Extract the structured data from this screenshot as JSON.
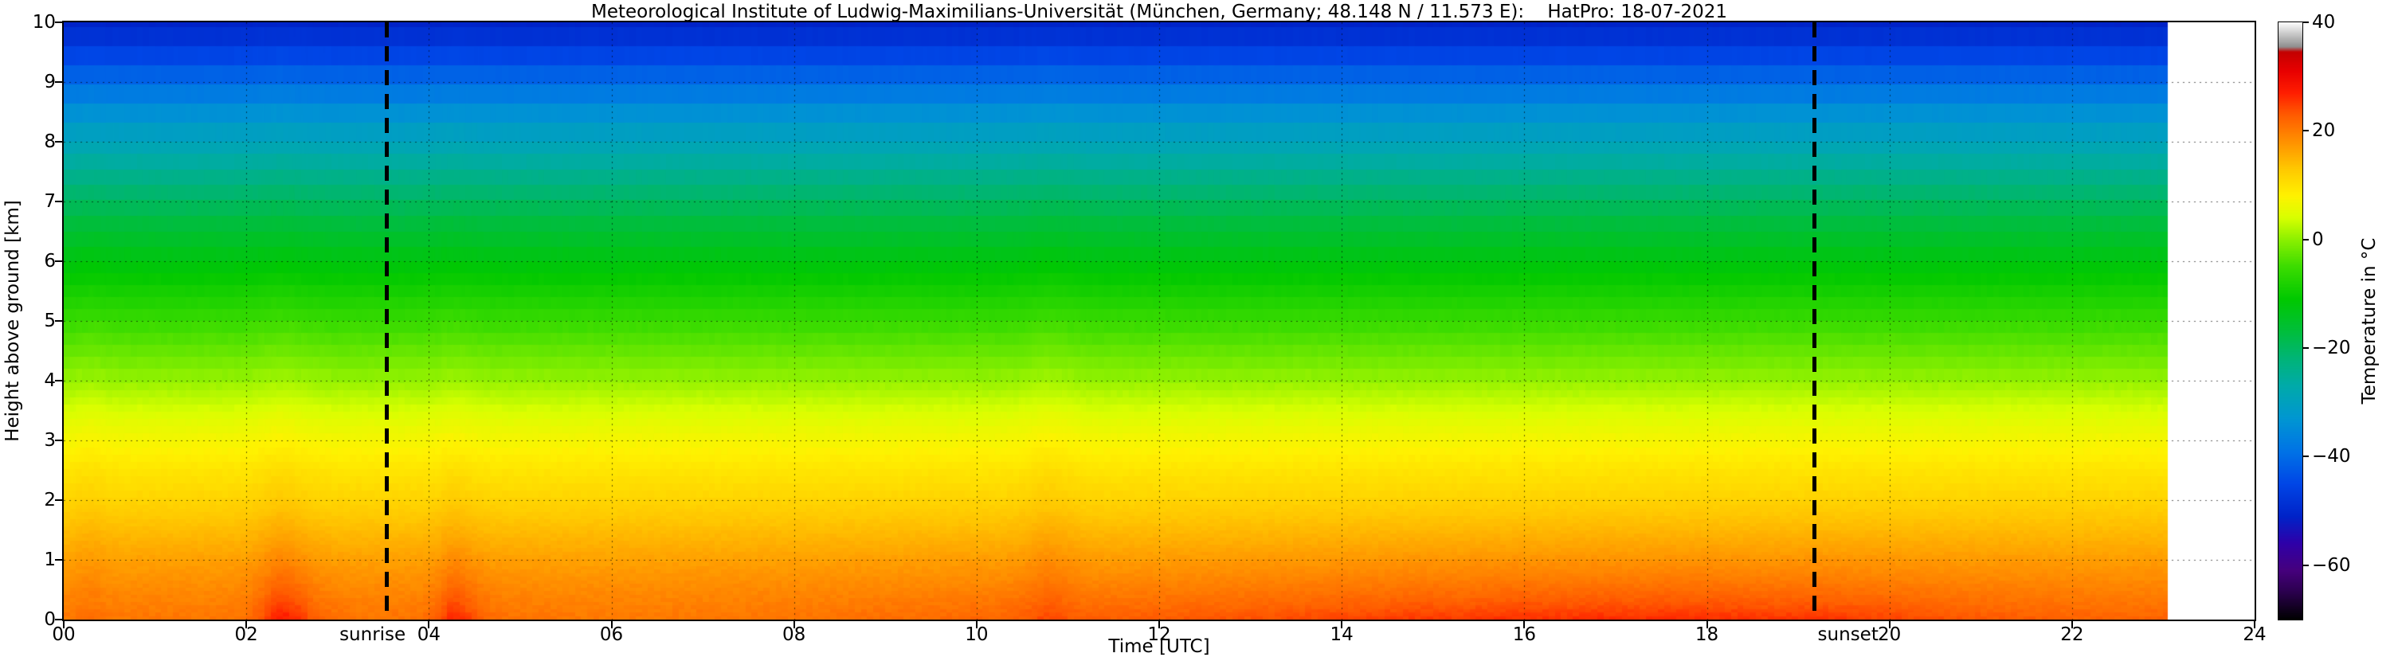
{
  "title": "Meteorological Institute of Ludwig-Maximilians-Universität (München, Germany; 48.148 N / 11.573 E):    HatPro: 18-07-2021",
  "chart_data": {
    "type": "heatmap",
    "title": "Meteorological Institute of Ludwig-Maximilians-Universität (München, Germany; 48.148 N / 11.573 E):    HatPro: 18-07-2021",
    "xlabel": "Time [UTC]",
    "ylabel": "Height above ground [km]",
    "x_range": [
      0,
      24
    ],
    "y_range": [
      0,
      10
    ],
    "grid": true,
    "data_time_extent_utc": [
      0,
      23.05
    ],
    "x_ticks": [
      {
        "v": 0,
        "label": "00"
      },
      {
        "v": 2,
        "label": "02"
      },
      {
        "v": 4,
        "label": "04"
      },
      {
        "v": 6,
        "label": "06"
      },
      {
        "v": 8,
        "label": "08"
      },
      {
        "v": 10,
        "label": "10"
      },
      {
        "v": 12,
        "label": "12"
      },
      {
        "v": 14,
        "label": "14"
      },
      {
        "v": 16,
        "label": "16"
      },
      {
        "v": 18,
        "label": "18"
      },
      {
        "v": 20,
        "label": "20"
      },
      {
        "v": 22,
        "label": "22"
      },
      {
        "v": 24,
        "label": "24"
      }
    ],
    "y_ticks": [
      {
        "v": 0,
        "label": "0"
      },
      {
        "v": 1,
        "label": "1"
      },
      {
        "v": 2,
        "label": "2"
      },
      {
        "v": 3,
        "label": "3"
      },
      {
        "v": 4,
        "label": "4"
      },
      {
        "v": 5,
        "label": "5"
      },
      {
        "v": 6,
        "label": "6"
      },
      {
        "v": 7,
        "label": "7"
      },
      {
        "v": 8,
        "label": "8"
      },
      {
        "v": 9,
        "label": "9"
      },
      {
        "v": 10,
        "label": "10"
      }
    ],
    "colorbar": {
      "label": "Temperature in  °C",
      "range": [
        -70,
        40
      ],
      "ticks": [
        {
          "v": 40,
          "label": "40"
        },
        {
          "v": 20,
          "label": "20"
        },
        {
          "v": 0,
          "label": "0"
        },
        {
          "v": -20,
          "label": "−20"
        },
        {
          "v": -40,
          "label": "−40"
        },
        {
          "v": -60,
          "label": "−60"
        }
      ]
    },
    "annotations": {
      "sunrise": {
        "label": "sunrise",
        "time_utc": 3.54
      },
      "sunset": {
        "label": "sunset",
        "time_utc": 19.18
      }
    },
    "profile_heights_km": [
      0,
      0.5,
      1,
      1.5,
      2,
      2.5,
      3,
      3.5,
      4,
      4.5,
      5,
      5.5,
      6,
      6.5,
      7,
      7.5,
      8,
      8.5,
      9,
      9.25,
      9.5,
      9.75,
      10
    ],
    "profile_mean_temps_c": [
      20,
      18.5,
      16.5,
      14,
      11.5,
      9.5,
      7,
      4,
      0.5,
      -2.5,
      -5.5,
      -9,
      -12.5,
      -16,
      -20,
      -24.5,
      -29,
      -34,
      -40,
      -43,
      -46,
      -48.5,
      -51
    ],
    "surface_series": {
      "times_utc": [
        0,
        0.5,
        1,
        1.5,
        2.0,
        2.2,
        2.35,
        2.55,
        2.75,
        3.0,
        3.3,
        3.9,
        4.1,
        4.25,
        4.45,
        4.7,
        5.0,
        5.5,
        6.0,
        6.5,
        7.0,
        7.5,
        8.0,
        8.5,
        9.0,
        9.5,
        10.0,
        10.5,
        10.8,
        11.0,
        11.5,
        12.0,
        12.5,
        13.0,
        13.5,
        14.0,
        14.5,
        15.0,
        15.3,
        15.6,
        16.0,
        16.4,
        16.8,
        17.2,
        17.6,
        18.0,
        18.4,
        18.8,
        19.2,
        19.6,
        20.0,
        20.5,
        21.0,
        21.5,
        22.0,
        22.5,
        23.05
      ],
      "temps_c": [
        20.5,
        20.3,
        20.6,
        20.4,
        21.0,
        23.5,
        26.8,
        25.5,
        22.5,
        21.2,
        20.6,
        20.8,
        22.5,
        26.0,
        24.0,
        21.5,
        20.8,
        20.4,
        20.2,
        20.3,
        20.5,
        20.6,
        20.8,
        21.0,
        21.3,
        21.6,
        22.0,
        22.4,
        23.2,
        22.6,
        22.8,
        23.0,
        23.3,
        23.6,
        24.2,
        24.6,
        25.0,
        25.6,
        25.2,
        25.8,
        26.2,
        25.8,
        26.4,
        26.0,
        26.5,
        26.2,
        25.8,
        25.6,
        25.9,
        25.2,
        24.6,
        23.8,
        23.2,
        22.8,
        22.4,
        22.2,
        22.3
      ]
    },
    "warm_column_anomalies": [
      {
        "time_utc": 0.3,
        "delta_c": 0.8,
        "width_h": 0.12
      },
      {
        "time_utc": 2.4,
        "delta_c": 1.3,
        "width_h": 0.2
      },
      {
        "time_utc": 4.3,
        "delta_c": 1.0,
        "width_h": 0.15
      },
      {
        "time_utc": 10.8,
        "delta_c": 1.4,
        "width_h": 0.2
      }
    ],
    "colormap_stops": [
      [
        -70,
        "#000000"
      ],
      [
        -65,
        "#2a004d"
      ],
      [
        -61,
        "#46007d"
      ],
      [
        -56,
        "#2f00a8"
      ],
      [
        -51,
        "#0023c8"
      ],
      [
        -45,
        "#0046e6"
      ],
      [
        -39,
        "#0073e6"
      ],
      [
        -33,
        "#0096d2"
      ],
      [
        -27,
        "#00aaaa"
      ],
      [
        -22,
        "#00b478"
      ],
      [
        -17,
        "#00be3c"
      ],
      [
        -11,
        "#00c800"
      ],
      [
        -5,
        "#3cdc00"
      ],
      [
        0,
        "#8cf000"
      ],
      [
        4,
        "#d8ff00"
      ],
      [
        8,
        "#fff200"
      ],
      [
        13,
        "#ffc800"
      ],
      [
        18,
        "#ff9100"
      ],
      [
        23,
        "#ff5a00"
      ],
      [
        27,
        "#ff1e00"
      ],
      [
        31,
        "#e80000"
      ],
      [
        34.5,
        "#c40000"
      ],
      [
        35.5,
        "#909090"
      ],
      [
        38,
        "#cccccc"
      ],
      [
        40,
        "#ffffff"
      ]
    ]
  }
}
